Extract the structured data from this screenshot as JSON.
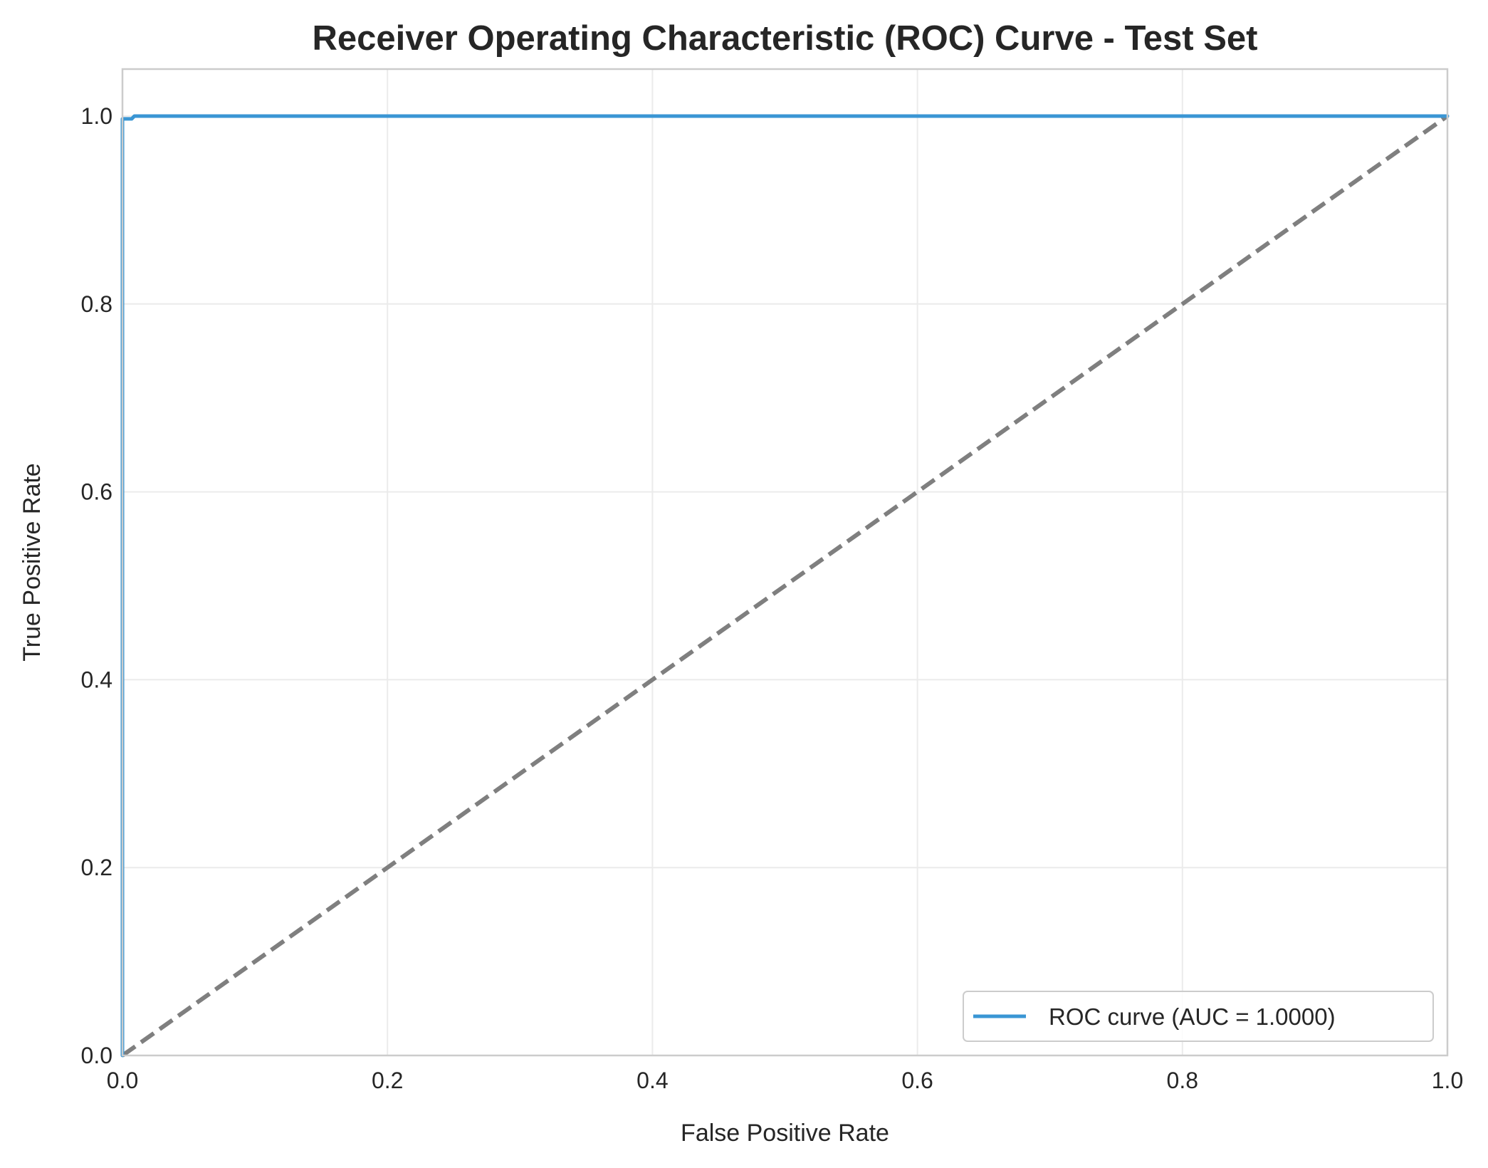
{
  "chart_data": {
    "type": "line",
    "title": "Receiver Operating Characteristic (ROC) Curve - Test Set",
    "xlabel": "False Positive Rate",
    "ylabel": "True Positive Rate",
    "xlim": [
      0.0,
      1.0
    ],
    "ylim": [
      0.0,
      1.05
    ],
    "xticks": [
      0.0,
      0.2,
      0.4,
      0.6,
      0.8,
      1.0
    ],
    "yticks": [
      0.0,
      0.2,
      0.4,
      0.6,
      0.8,
      1.0
    ],
    "xtick_labels": [
      "0.0",
      "0.2",
      "0.4",
      "0.6",
      "0.8",
      "1.0"
    ],
    "ytick_labels": [
      "0.0",
      "0.2",
      "0.4",
      "0.6",
      "0.8",
      "1.0"
    ],
    "grid": true,
    "legend_position": "bottom-right",
    "series": [
      {
        "name": "ROC curve (AUC = 1.0000)",
        "color": "#3a96d4",
        "style": "solid",
        "in_legend": true,
        "x": [
          0.0,
          0.0,
          0.0,
          0.007,
          0.009,
          1.0
        ],
        "y": [
          0.0,
          0.997,
          0.997,
          0.997,
          1.0,
          1.0
        ]
      },
      {
        "name": "",
        "color": "#7f7f7f",
        "style": "dashed",
        "in_legend": false,
        "x": [
          0.0,
          1.0
        ],
        "y": [
          0.0,
          1.0
        ]
      }
    ]
  }
}
